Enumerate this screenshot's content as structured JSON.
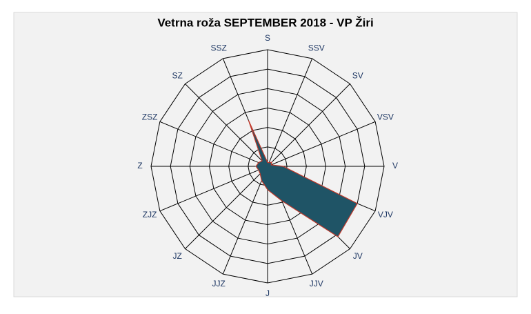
{
  "chart_data": {
    "type": "radar",
    "title": "Vetrna roža SEPTEMBER  2018 - VP Žiri",
    "categories": [
      "S",
      "SSV",
      "SV",
      "VSV",
      "V",
      "VJV",
      "JV",
      "JJV",
      "J",
      "JJZ",
      "JZ",
      "ZJZ",
      "Z",
      "ZSZ",
      "SZ",
      "SSZ"
    ],
    "series": [
      {
        "name": "SEPTEMBER 2018",
        "color": "#1f5466",
        "line_color": "#c0392b",
        "values": [
          1,
          1,
          1.5,
          1,
          4,
          25,
          25.6,
          9.6,
          6,
          4,
          2.7,
          2.5,
          3,
          2.5,
          2,
          12.8
        ]
      }
    ],
    "rlim": [
      0,
      30
    ],
    "rticks": [
      5,
      10,
      15,
      20,
      25,
      30
    ],
    "grid": true
  }
}
